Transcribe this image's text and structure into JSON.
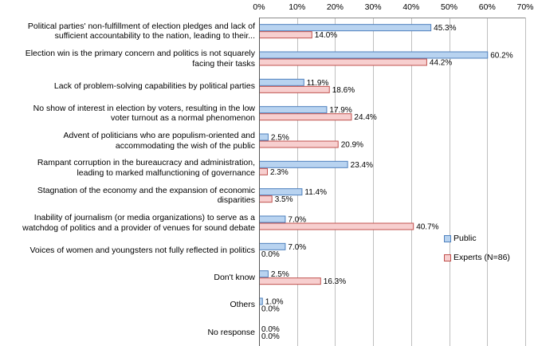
{
  "chart_data": {
    "type": "bar",
    "orientation": "horizontal",
    "x_axis": {
      "min": 0,
      "max": 70,
      "step": 10,
      "unit": "%"
    },
    "ticks": [
      "0%",
      "10%",
      "20%",
      "30%",
      "40%",
      "50%",
      "60%",
      "70%"
    ],
    "categories": [
      {
        "lines": [
          "Political parties' non-fulfillment of election pledges and lack of",
          "sufficient accountability to the nation, leading to their..."
        ]
      },
      {
        "lines": [
          "Election win is the primary concern and politics is not squarely",
          "facing their tasks"
        ]
      },
      {
        "lines": [
          "Lack of problem-solving capabilities by political parties"
        ]
      },
      {
        "lines": [
          "No show of interest in election by voters, resulting in the low",
          "voter turnout as a normal phenomenon"
        ]
      },
      {
        "lines": [
          "Advent of politicians who are populism-oriented and",
          "accommodating the wish of the public"
        ]
      },
      {
        "lines": [
          "Rampant corruption in the bureaucracy and administration,",
          "leading to marked malfunctioning of governance"
        ]
      },
      {
        "lines": [
          "Stagnation of the economy and the expansion of economic",
          "disparities"
        ]
      },
      {
        "lines": [
          "Inability of journalism (or media organizations) to serve as a",
          "watchdog of politics and a provider of venues for sound debate"
        ]
      },
      {
        "lines": [
          "Voices of women and youngsters not fully reflected in politics"
        ]
      },
      {
        "lines": [
          "Don't know"
        ]
      },
      {
        "lines": [
          "Others"
        ]
      },
      {
        "lines": [
          "No response"
        ]
      }
    ],
    "series": [
      {
        "name": "Public",
        "fill": "#b8d3f0",
        "stroke": "#4f81bd",
        "values": [
          45.3,
          60.2,
          11.9,
          17.9,
          2.5,
          23.4,
          11.4,
          7.0,
          7.0,
          2.5,
          1.0,
          0.0
        ],
        "labels": [
          "45.3%",
          "60.2%",
          "11.9%",
          "17.9%",
          "2.5%",
          "23.4%",
          "11.4%",
          "7.0%",
          "7.0%",
          "2.5%",
          "1.0%",
          "0.0%"
        ]
      },
      {
        "name": "Experts (N=86)",
        "fill": "#f7cfcf",
        "stroke": "#c0504d",
        "values": [
          14.0,
          44.2,
          18.6,
          24.4,
          20.9,
          2.3,
          3.5,
          40.7,
          0.0,
          16.3,
          0.0,
          0.0
        ],
        "labels": [
          "14.0%",
          "44.2%",
          "18.6%",
          "24.4%",
          "20.9%",
          "2.3%",
          "3.5%",
          "40.7%",
          "0.0%",
          "16.3%",
          "0.0%",
          "0.0%"
        ]
      }
    ],
    "legend": [
      {
        "label": "Public",
        "fill": "#b8d3f0",
        "stroke": "#4f81bd"
      },
      {
        "label": "Experts (N=86)",
        "fill": "#f7cfcf",
        "stroke": "#c0504d"
      }
    ],
    "legend_position": "right",
    "grid": true
  }
}
